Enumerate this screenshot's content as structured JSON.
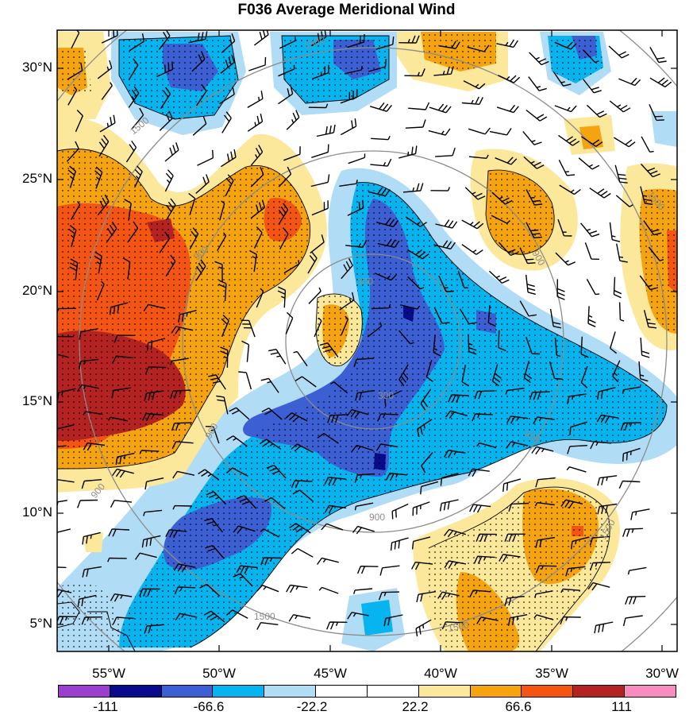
{
  "title": "F036 Average Meridional Wind",
  "lat_labels": [
    "30°N",
    "25°N",
    "20°N",
    "15°N",
    "10°N",
    "5°N"
  ],
  "lon_labels": [
    "55°W",
    "50°W",
    "45°W",
    "40°W",
    "35°W",
    "30°W"
  ],
  "contour_labels": [
    "1500",
    "1500",
    "1500",
    "900",
    "900",
    "900",
    "900",
    "900",
    "300",
    "300",
    "900",
    "1500",
    "1500",
    "1500"
  ],
  "colorbar": {
    "labels": [
      "-111",
      "-66.6",
      "-22.2",
      "22.2",
      "66.6",
      "111"
    ],
    "colors": [
      "#9c3fd1",
      "#0a0a8c",
      "#3d5fd4",
      "#06b4f0",
      "#b0dcf6",
      "#ffffff",
      "#ffffff",
      "#fbe89a",
      "#f5a30f",
      "#f55512",
      "#b42222",
      "#f78cbf"
    ]
  },
  "colors": {
    "land_outline": "#000000",
    "range_rings": "#8c8c8c",
    "frame": "#000000"
  }
}
